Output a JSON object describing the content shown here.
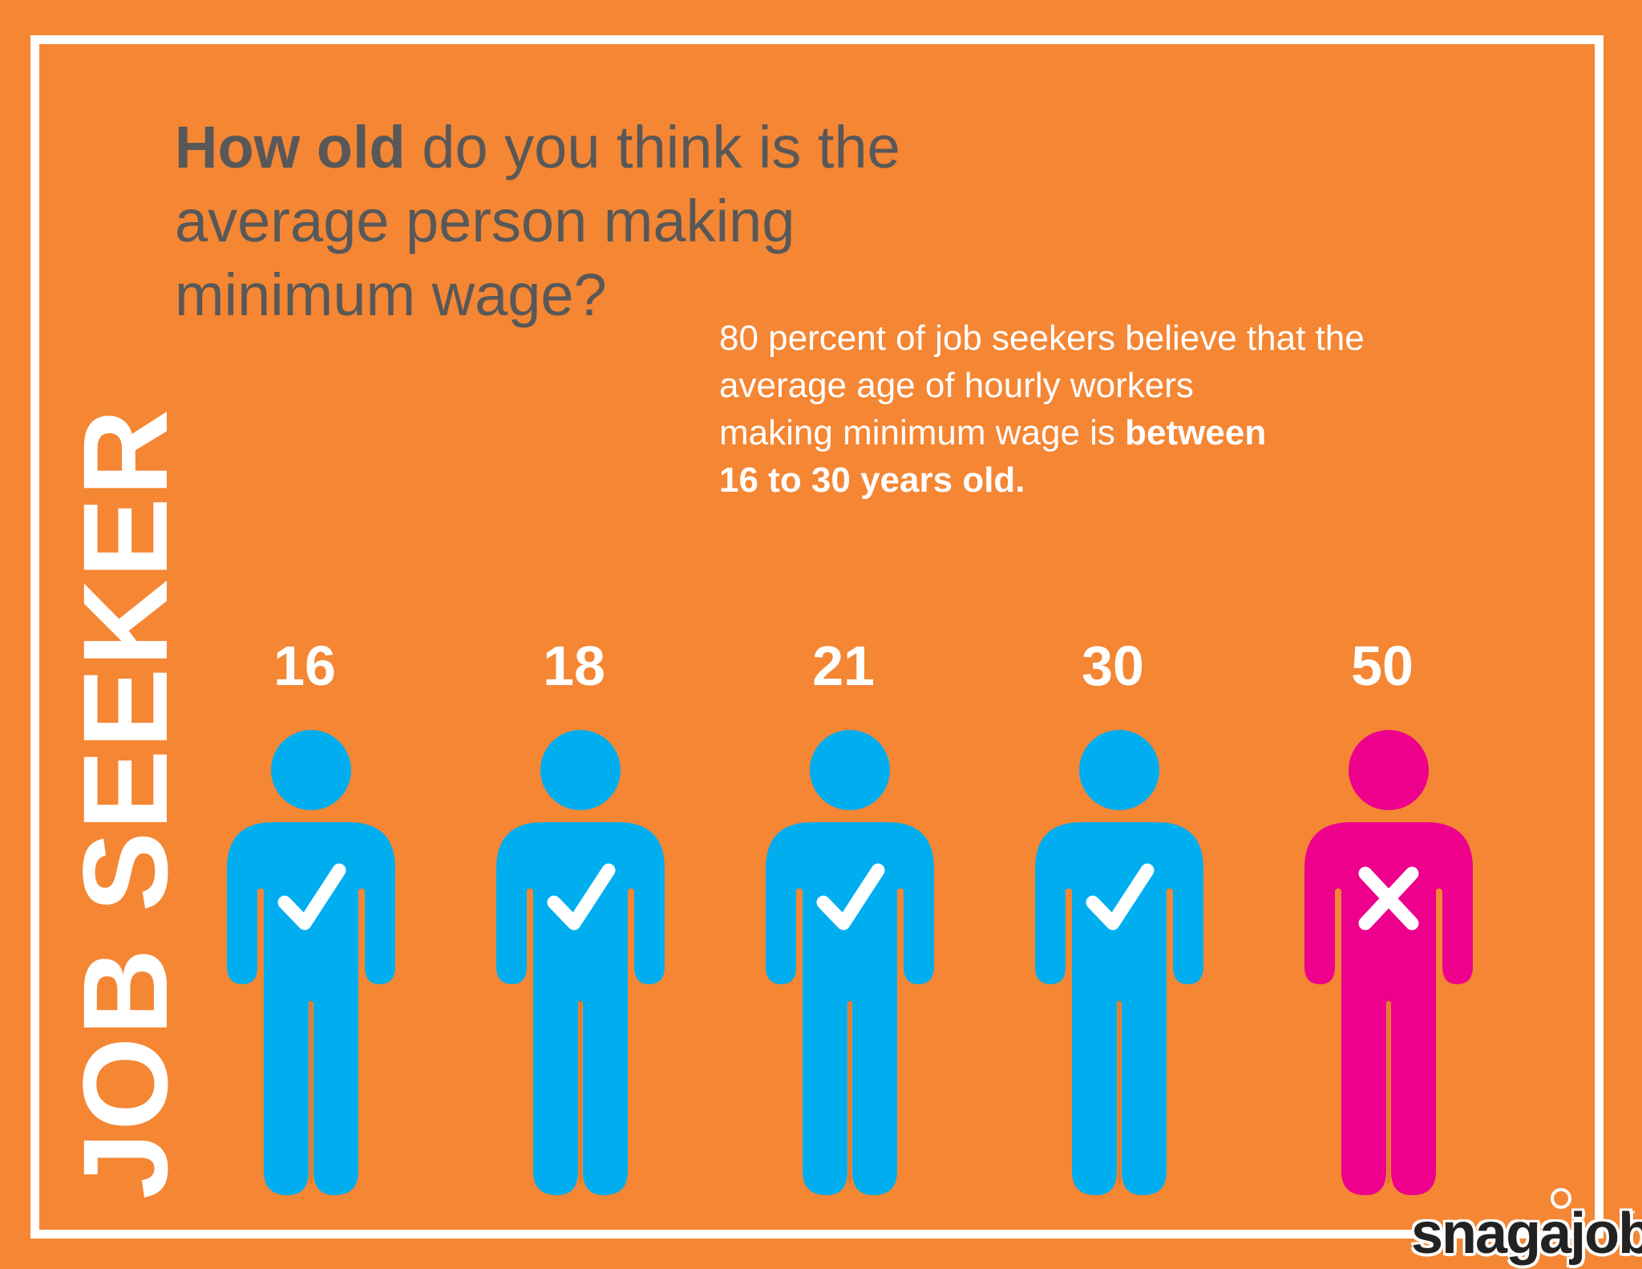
{
  "question": {
    "bold": "How old",
    "rest_line1": " do you think is the",
    "line2": "average person making",
    "line3": "minimum wage?"
  },
  "subtext": {
    "line1": "80 percent of job seekers believe that the",
    "line2": "average age of hourly workers",
    "line3_normal": "making minimum wage is ",
    "line3_bold": "between",
    "line4_bold": "16 to 30 years old."
  },
  "side_label": "JOB SEEKER",
  "figures": [
    {
      "age": "16",
      "mark": "check",
      "color": "#00aeef"
    },
    {
      "age": "18",
      "mark": "check",
      "color": "#00aeef"
    },
    {
      "age": "21",
      "mark": "check",
      "color": "#00aeef"
    },
    {
      "age": "30",
      "mark": "check",
      "color": "#00aeef"
    },
    {
      "age": "50",
      "mark": "cross",
      "color": "#ec008c"
    }
  ],
  "logo": "snagajob",
  "logo_tm": "™"
}
